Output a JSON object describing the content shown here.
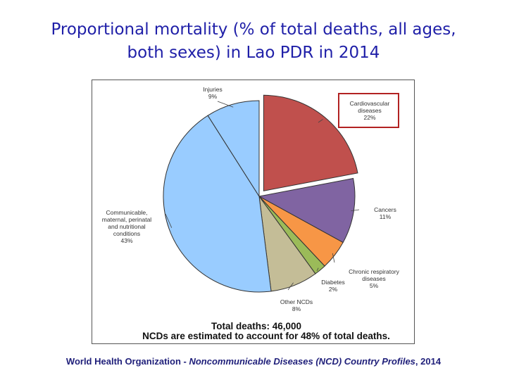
{
  "slide": {
    "title_line1": "Proportional mortality (% of total deaths, all ages,",
    "title_line2": "both sexes) in Lao PDR in 2014"
  },
  "chart_data": {
    "type": "pie",
    "slices": [
      {
        "label_lines": [
          "Cardiovascular",
          "diseases"
        ],
        "pct_label": "22%",
        "value": 22,
        "color": "#c0504d",
        "exploded": true,
        "highlighted": true
      },
      {
        "label_lines": [
          "Cancers"
        ],
        "pct_label": "11%",
        "value": 11,
        "color": "#8064a2",
        "exploded": false
      },
      {
        "label_lines": [
          "Chronic respiratory",
          "diseases"
        ],
        "pct_label": "5%",
        "value": 5,
        "color": "#f79646",
        "exploded": false
      },
      {
        "label_lines": [
          "Diabetes"
        ],
        "pct_label": "2%",
        "value": 2,
        "color": "#9bbb59",
        "exploded": false
      },
      {
        "label_lines": [
          "Other NCDs"
        ],
        "pct_label": "8%",
        "value": 8,
        "color": "#c4bd97",
        "exploded": false
      },
      {
        "label_lines": [
          "Communicable,",
          "maternal, perinatal",
          "and nutritional",
          "conditions"
        ],
        "pct_label": "43%",
        "value": 43,
        "color": "#99ccff",
        "exploded": false
      },
      {
        "label_lines": [
          "Injuries"
        ],
        "pct_label": "9%",
        "value": 9,
        "color": "#99ccff",
        "exploded": false
      }
    ],
    "footer_line1": "Total deaths: 46,000",
    "footer_line2": "NCDs are estimated to account for 48% of total deaths.",
    "highlight_color": "#b22222"
  },
  "source": {
    "part1": "World Health Organization - ",
    "part2": "Noncommunicable Diseases (NCD) Country Profiles",
    "part3": ", 2014"
  }
}
